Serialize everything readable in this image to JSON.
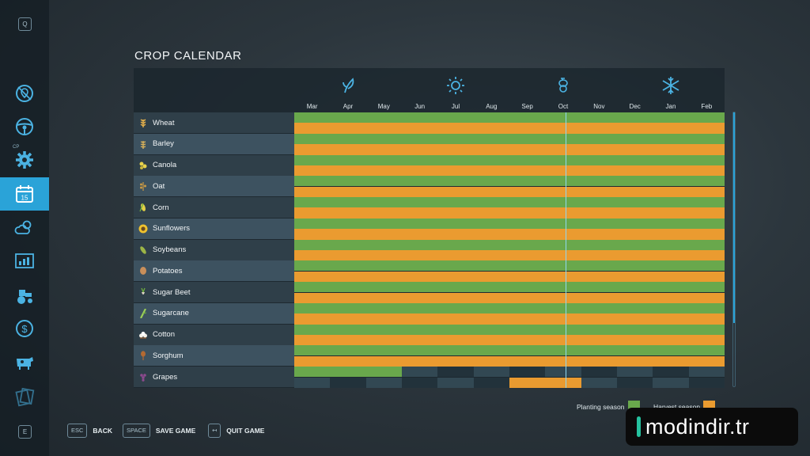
{
  "sidebar": {
    "top_key": "Q",
    "bottom_key": "E",
    "badge": "CP",
    "items": [
      {
        "name": "nav-missions",
        "icon": "map-marker-icon",
        "active": false
      },
      {
        "name": "nav-vehicles",
        "icon": "steering-wheel-icon",
        "active": false
      },
      {
        "name": "nav-production",
        "icon": "gear-icon",
        "active": false
      },
      {
        "name": "nav-calendar",
        "icon": "calendar-icon",
        "active": true,
        "number": "15"
      },
      {
        "name": "nav-weather",
        "icon": "weather-icon",
        "active": false
      },
      {
        "name": "nav-prices",
        "icon": "chart-icon",
        "active": false
      },
      {
        "name": "nav-garage",
        "icon": "tractor-icon",
        "active": false
      },
      {
        "name": "nav-finances",
        "icon": "dollar-icon",
        "active": false
      },
      {
        "name": "nav-animals",
        "icon": "cow-icon",
        "active": false
      },
      {
        "name": "nav-contracts",
        "icon": "documents-icon",
        "active": false
      }
    ]
  },
  "page": {
    "title": "CROP CALENDAR"
  },
  "calendar": {
    "seasons": [
      {
        "name": "spring-icon",
        "month_index": 1
      },
      {
        "name": "summer-icon",
        "month_index": 4
      },
      {
        "name": "autumn-icon",
        "month_index": 7
      },
      {
        "name": "winter-icon",
        "month_index": 10
      }
    ],
    "months": [
      "Mar",
      "Apr",
      "May",
      "Jun",
      "Jul",
      "Aug",
      "Sep",
      "Oct",
      "Nov",
      "Dec",
      "Jan",
      "Feb"
    ],
    "current_month_fraction": 0.63,
    "crops": [
      {
        "name": "Wheat",
        "icon": "wheat-icon"
      },
      {
        "name": "Barley",
        "icon": "barley-icon"
      },
      {
        "name": "Canola",
        "icon": "canola-icon"
      },
      {
        "name": "Oat",
        "icon": "oat-icon"
      },
      {
        "name": "Corn",
        "icon": "corn-icon"
      },
      {
        "name": "Sunflowers",
        "icon": "sunflower-icon"
      },
      {
        "name": "Soybeans",
        "icon": "soybean-icon"
      },
      {
        "name": "Potatoes",
        "icon": "potato-icon"
      },
      {
        "name": "Sugar Beet",
        "icon": "sugar-beet-icon"
      },
      {
        "name": "Sugarcane",
        "icon": "sugarcane-icon"
      },
      {
        "name": "Cotton",
        "icon": "cotton-icon"
      },
      {
        "name": "Sorghum",
        "icon": "sorghum-icon"
      },
      {
        "name": "Grapes",
        "icon": "grapes-icon"
      }
    ],
    "grapes_planting_months": [
      0,
      1,
      2
    ],
    "grapes_harvest_months": [
      6,
      7
    ]
  },
  "legend": {
    "planting_label": "Planting season",
    "planting_color": "#69a84c",
    "harvest_label": "Harvest season",
    "harvest_color": "#ea9b30"
  },
  "actions": [
    {
      "key": "ESC",
      "label": "BACK"
    },
    {
      "key": "SPACE",
      "label": "SAVE GAME"
    },
    {
      "key": "↤",
      "label": "QUIT GAME"
    }
  ],
  "watermark": {
    "text": "modindir.tr"
  }
}
